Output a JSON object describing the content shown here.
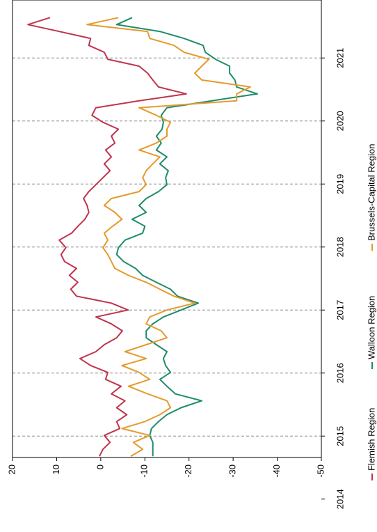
{
  "chart_data": {
    "type": "line",
    "x": [
      2014.68,
      2014.79,
      2014.9,
      2015.01,
      2015.12,
      2015.23,
      2015.34,
      2015.45,
      2015.56,
      2015.67,
      2015.79,
      2015.9,
      2016.01,
      2016.12,
      2016.23,
      2016.34,
      2016.45,
      2016.56,
      2016.67,
      2016.78,
      2016.89,
      2017.0,
      2017.11,
      2017.22,
      2017.33,
      2017.44,
      2017.55,
      2017.66,
      2017.77,
      2017.88,
      2017.99,
      2018.11,
      2018.22,
      2018.33,
      2018.44,
      2018.55,
      2018.66,
      2018.77,
      2018.88,
      2018.99,
      2019.1,
      2019.21,
      2019.32,
      2019.43,
      2019.54,
      2019.65,
      2019.76,
      2019.87,
      2019.98,
      2020.09,
      2020.21,
      2020.32,
      2020.43,
      2020.54,
      2020.65,
      2020.76,
      2020.87,
      2020.98,
      2021.09,
      2021.2,
      2021.31,
      2021.42,
      2021.53,
      2021.64
    ],
    "series": [
      {
        "name": "Flemish Region",
        "color": "#c0344d",
        "values": [
          0.3,
          -0.5,
          -2.1,
          -0.8,
          -4.3,
          -3.6,
          -5.9,
          -3.6,
          -5.5,
          -2.4,
          -4.6,
          -1.1,
          -1.6,
          2.3,
          4.7,
          1.1,
          -0.8,
          -3.6,
          -4.9,
          -2.4,
          1.1,
          -6.2,
          -2.4,
          5.5,
          6.8,
          5.2,
          7.1,
          5.5,
          8.2,
          9.0,
          7.9,
          9.4,
          6.6,
          5.2,
          3.6,
          2.7,
          3.1,
          3.9,
          2.7,
          1.1,
          -0.5,
          -2.1,
          -0.8,
          -2.4,
          -1.1,
          -3.2,
          -2.4,
          -4.0,
          -0.5,
          2.0,
          1.1,
          -8.7,
          -19.4,
          -13.1,
          -11.8,
          -10.6,
          -8.7,
          -1.6,
          -0.8,
          2.7,
          2.3,
          9.4,
          16.5,
          11.5
        ]
      },
      {
        "name": "Walloon Region",
        "color": "#1e8c6a",
        "values": [
          -11.8,
          -11.8,
          -11.8,
          -11.1,
          -11.5,
          -13.1,
          -15.0,
          -18.2,
          -22.9,
          -16.9,
          -15.0,
          -13.4,
          -15.8,
          -14.7,
          -14.2,
          -15.0,
          -12.6,
          -10.3,
          -10.3,
          -11.8,
          -14.2,
          -18.2,
          -22.1,
          -17.4,
          -15.8,
          -12.6,
          -9.5,
          -7.9,
          -5.2,
          -3.6,
          -4.0,
          -5.5,
          -9.5,
          -10.0,
          -7.1,
          -10.3,
          -8.7,
          -10.3,
          -13.1,
          -15.0,
          -14.7,
          -15.3,
          -13.4,
          -15.0,
          -12.6,
          -13.7,
          -12.6,
          -13.9,
          -14.2,
          -13.7,
          -15.0,
          -25.2,
          -35.5,
          -30.8,
          -30.4,
          -29.2,
          -29.2,
          -26.0,
          -23.7,
          -23.2,
          -18.9,
          -13.4,
          -3.6,
          -7.1
        ]
      },
      {
        "name": "Brussels-Capital Region",
        "color": "#e59a2c",
        "values": [
          -6.8,
          -9.5,
          -7.4,
          -11.1,
          -4.8,
          -10.0,
          -13.4,
          -15.8,
          -15.0,
          -10.6,
          -6.3,
          -11.1,
          -8.7,
          -4.8,
          -10.3,
          -5.5,
          -10.3,
          -15.0,
          -13.7,
          -10.3,
          -11.1,
          -15.0,
          -21.3,
          -16.6,
          -13.4,
          -10.3,
          -6.3,
          -3.2,
          -2.4,
          -1.6,
          -0.5,
          -1.6,
          -0.8,
          -2.7,
          -4.8,
          -3.2,
          -0.8,
          -2.4,
          -8.7,
          -10.3,
          -9.5,
          -10.3,
          -11.8,
          -13.4,
          -8.7,
          -12.6,
          -15.0,
          -15.0,
          -15.8,
          -12.6,
          -8.7,
          -30.8,
          -30.8,
          -33.9,
          -22.9,
          -21.3,
          -22.9,
          -24.5,
          -18.9,
          -16.6,
          -11.1,
          -10.6,
          3.1,
          -4.0
        ]
      }
    ],
    "xlim": [
      2014.66,
      2021.92
    ],
    "xticks": [
      2014,
      2015,
      2016,
      2017,
      2018,
      2019,
      2020,
      2021
    ],
    "ylim": [
      -50,
      20
    ],
    "yticks": [
      20,
      10,
      0,
      -10,
      -20,
      -30,
      -40,
      -50
    ],
    "grid": true,
    "legend": "bottom"
  }
}
